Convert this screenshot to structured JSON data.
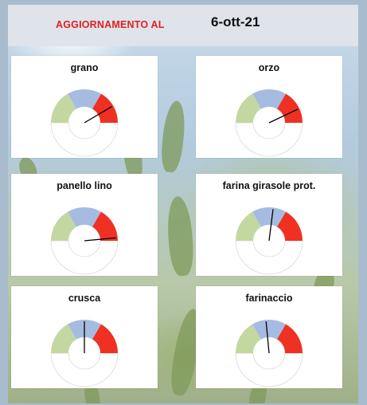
{
  "header": {
    "label": "AGGIORNAMENTO AL",
    "date": "6-ott-21"
  },
  "colors": {
    "green_zone": "#c3d8a1",
    "blue_zone": "#a6bbe1",
    "red_zone": "#ee3123",
    "needle": "#000000",
    "label_red": "#e02020"
  },
  "chart_data": [
    {
      "type": "gauge",
      "title": "grano",
      "zones": [
        "green",
        "blue",
        "red"
      ],
      "value": 0.83,
      "range": [
        0,
        1
      ]
    },
    {
      "type": "gauge",
      "title": "orzo",
      "zones": [
        "green",
        "blue",
        "red"
      ],
      "value": 0.86,
      "range": [
        0,
        1
      ]
    },
    {
      "type": "gauge",
      "title": "panello lino",
      "zones": [
        "green",
        "blue",
        "red"
      ],
      "value": 0.97,
      "range": [
        0,
        1
      ]
    },
    {
      "type": "gauge",
      "title": "farina girasole prot.",
      "zones": [
        "green",
        "blue",
        "red"
      ],
      "value": 0.54,
      "range": [
        0,
        1
      ]
    },
    {
      "type": "gauge",
      "title": "crusca",
      "zones": [
        "green",
        "blue",
        "red"
      ],
      "value": 0.5,
      "range": [
        0,
        1
      ]
    },
    {
      "type": "gauge",
      "title": "farinaccio",
      "zones": [
        "green",
        "blue",
        "red"
      ],
      "value": 0.47,
      "range": [
        0,
        1
      ]
    }
  ]
}
